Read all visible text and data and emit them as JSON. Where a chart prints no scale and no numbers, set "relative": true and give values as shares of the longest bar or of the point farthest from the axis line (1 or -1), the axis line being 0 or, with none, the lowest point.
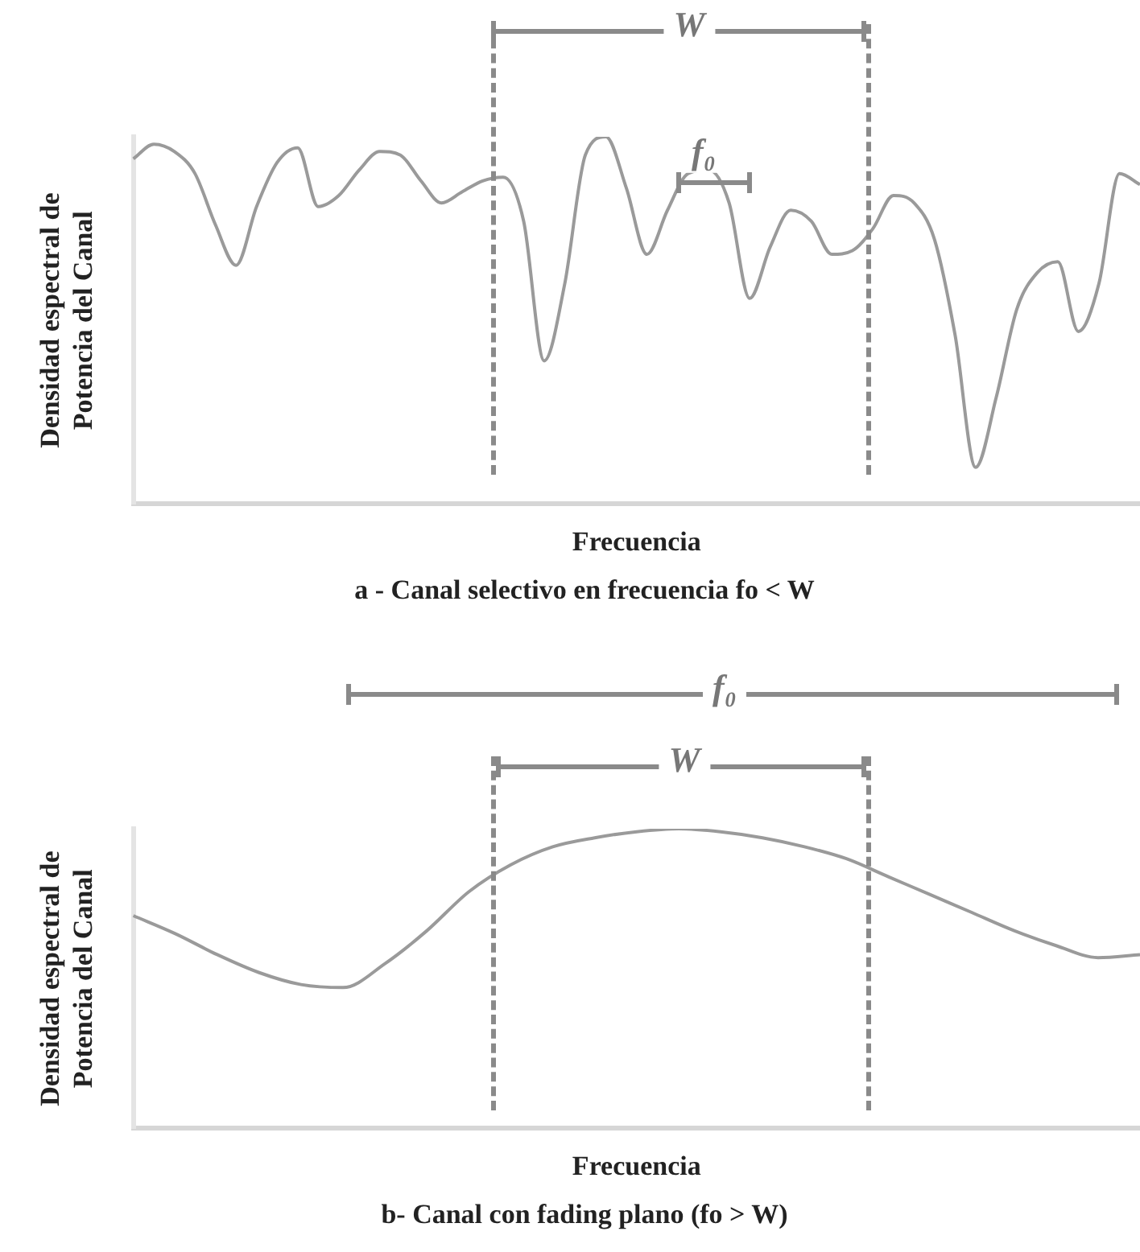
{
  "chart_data": [
    {
      "type": "line",
      "relative": true,
      "marker": "none",
      "legend": false,
      "title": "a - Canal selectivo en frecuencia fo < W",
      "xlabel": "Frecuencia",
      "ylabel": "Densidad espectral de\nPotencia del Canal",
      "annotations": [
        "W",
        "f₀"
      ],
      "categories": [
        null,
        null,
        null,
        null,
        null,
        null,
        null,
        null,
        null,
        null,
        null,
        null,
        null,
        null,
        null,
        null,
        null,
        null,
        null,
        null,
        null,
        null,
        null,
        null,
        null,
        null,
        null,
        null,
        null,
        null,
        null,
        null,
        null,
        null,
        null,
        null,
        null,
        null,
        null,
        null,
        null,
        null,
        null,
        null,
        null,
        null,
        null,
        null,
        null,
        null
      ],
      "series": [
        {
          "color": "#9a9a9a",
          "values": [
            0.94,
            0.98,
            0.96,
            0.9,
            0.76,
            0.65,
            0.81,
            0.93,
            0.97,
            0.81,
            0.84,
            0.91,
            0.96,
            0.95,
            0.88,
            0.82,
            0.85,
            0.88,
            0.89,
            0.77,
            0.39,
            0.6,
            0.95,
            1,
            0.86,
            0.68,
            0.8,
            0.9,
            0.91,
            0.82,
            0.56,
            0.7,
            0.8,
            0.77,
            0.68,
            0.69,
            0.75,
            0.84,
            0.82,
            0.72,
            0.46,
            0.1,
            0.29,
            0.53,
            0.63,
            0.66,
            0.47,
            0.6,
            0.9,
            0.87
          ]
        }
      ]
    },
    {
      "type": "line",
      "relative": true,
      "marker": "none",
      "legend": false,
      "title": "b- Canal con fading plano (fo > W)",
      "xlabel": "Frecuencia",
      "ylabel": "Densidad espectral de\nPotencia del Canal",
      "annotations": [
        "f₀",
        "W"
      ],
      "categories": [
        null,
        null,
        null,
        null,
        null,
        null,
        null,
        null,
        null,
        null,
        null,
        null,
        null,
        null,
        null,
        null,
        null,
        null,
        null,
        null,
        null,
        null,
        null,
        null,
        null
      ],
      "series": [
        {
          "color": "#9a9a9a",
          "values": [
            0.71,
            0.65,
            0.58,
            0.52,
            0.48,
            0.47,
            0.55,
            0.66,
            0.79,
            0.88,
            0.94,
            0.97,
            0.99,
            1,
            0.99,
            0.97,
            0.94,
            0.9,
            0.84,
            0.78,
            0.72,
            0.66,
            0.61,
            0.57,
            0.58
          ]
        }
      ]
    }
  ]
}
